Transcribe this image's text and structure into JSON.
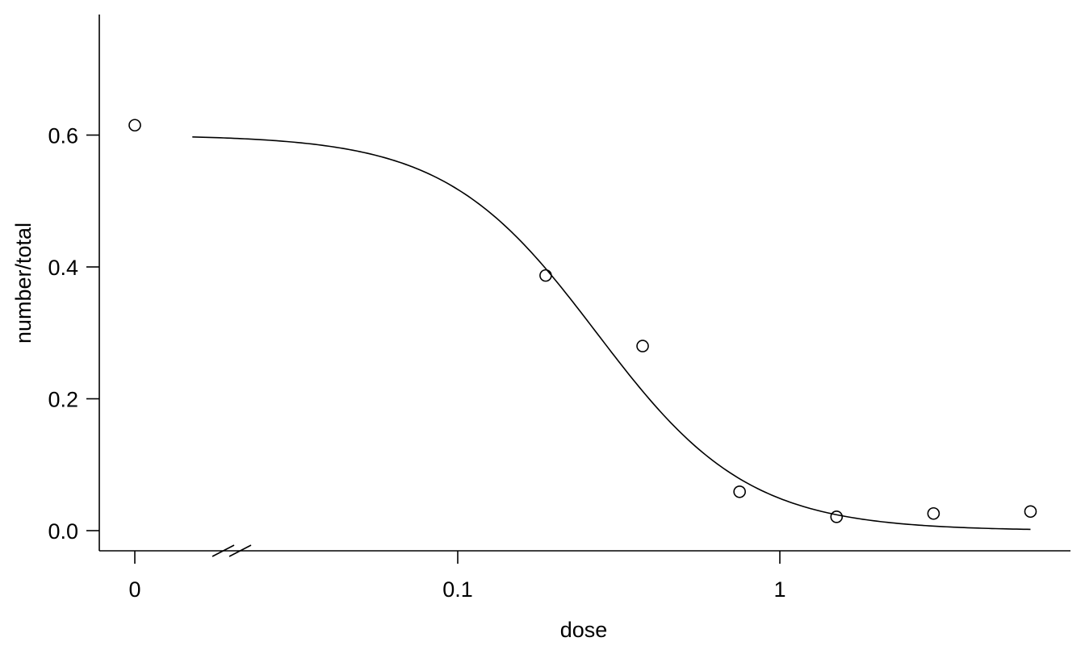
{
  "chart_data": {
    "type": "scatter",
    "title": "",
    "xlabel": "dose",
    "ylabel": "number/total",
    "x_scale": "log",
    "x_axis_break": true,
    "x_ticks": [
      "0",
      "0.1",
      "1"
    ],
    "y_ticks": [
      "0.0",
      "0.2",
      "0.4",
      "0.6"
    ],
    "ylim": [
      -0.03,
      0.78
    ],
    "grid": false,
    "colors": {
      "line": "#000000",
      "points": "#000000",
      "background": "#ffffff"
    },
    "series": [
      {
        "type": "scatter",
        "marker": "open-circle",
        "points": [
          {
            "x": 0,
            "y": 0.615
          },
          {
            "x": 0.1875,
            "y": 0.387
          },
          {
            "x": 0.375,
            "y": 0.28
          },
          {
            "x": 0.75,
            "y": 0.059
          },
          {
            "x": 1.5,
            "y": 0.021
          },
          {
            "x": 3,
            "y": 0.026
          },
          {
            "x": 6,
            "y": 0.029
          }
        ]
      },
      {
        "type": "line",
        "fitted_curve": {
          "upper": 0.6,
          "lower": 0.0,
          "ed50": 0.27,
          "slope": 1.85,
          "x_from": 0.015,
          "x_to": 6
        }
      }
    ]
  }
}
